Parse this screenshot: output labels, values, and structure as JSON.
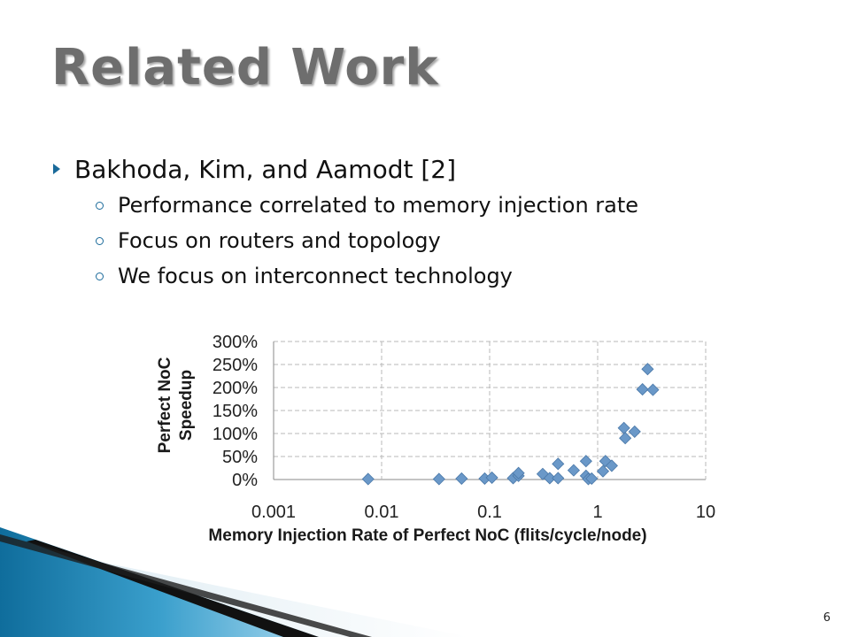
{
  "slide": {
    "title": "Related Work",
    "page_number": "6",
    "bullets": [
      {
        "text": "Bakhoda, Kim, and Aamodt [2]",
        "sub": [
          "Performance correlated to memory injection rate",
          "Focus on routers and topology",
          "We focus on interconnect technology"
        ]
      }
    ]
  },
  "colors": {
    "marker": "#6a98c8",
    "accent": "#1a6a9a",
    "title": "#6e6e6e"
  },
  "chart_data": {
    "type": "scatter",
    "xlabel": "Memory Injection Rate of Perfect NoC (flits/cycle/node)",
    "ylabel_lines": [
      "Perfect NoC",
      "Speedup"
    ],
    "x_scale": "log",
    "xlim": [
      0.001,
      10
    ],
    "ylim": [
      0,
      300
    ],
    "x_ticks": [
      "0.001",
      "0.01",
      "0.1",
      "1",
      "10"
    ],
    "y_ticks": [
      "300%",
      "250%",
      "200%",
      "150%",
      "100%",
      "50%",
      "0%"
    ],
    "grid": true,
    "marker": "diamond",
    "points": [
      {
        "x": 0.0075,
        "y": 1
      },
      {
        "x": 0.034,
        "y": 1
      },
      {
        "x": 0.055,
        "y": 2
      },
      {
        "x": 0.09,
        "y": 2
      },
      {
        "x": 0.105,
        "y": 4
      },
      {
        "x": 0.165,
        "y": 3
      },
      {
        "x": 0.185,
        "y": 8
      },
      {
        "x": 0.185,
        "y": 14
      },
      {
        "x": 0.31,
        "y": 12
      },
      {
        "x": 0.36,
        "y": 3
      },
      {
        "x": 0.43,
        "y": 3
      },
      {
        "x": 0.43,
        "y": 34
      },
      {
        "x": 0.6,
        "y": 20
      },
      {
        "x": 0.78,
        "y": 40
      },
      {
        "x": 0.78,
        "y": 8
      },
      {
        "x": 0.82,
        "y": 1
      },
      {
        "x": 0.88,
        "y": 2
      },
      {
        "x": 1.12,
        "y": 18
      },
      {
        "x": 1.18,
        "y": 40
      },
      {
        "x": 1.35,
        "y": 30
      },
      {
        "x": 1.75,
        "y": 112
      },
      {
        "x": 1.8,
        "y": 90
      },
      {
        "x": 2.2,
        "y": 104
      },
      {
        "x": 2.6,
        "y": 196
      },
      {
        "x": 2.9,
        "y": 240
      },
      {
        "x": 3.25,
        "y": 195
      }
    ]
  }
}
